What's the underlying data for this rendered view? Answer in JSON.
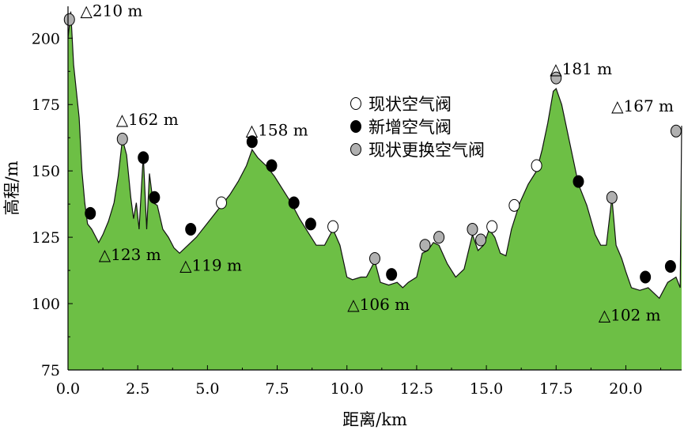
{
  "chart_data": {
    "type": "area",
    "xlabel": "距离/km",
    "ylabel": "高程/m",
    "xlim": [
      0,
      22
    ],
    "ylim": [
      75,
      212
    ],
    "x_ticks": [
      "0.0",
      "2.5",
      "5.0",
      "7.5",
      "10.0",
      "12.5",
      "15.0",
      "17.5",
      "20.0"
    ],
    "y_ticks": [
      "75",
      "100",
      "125",
      "150",
      "175",
      "200"
    ],
    "fill_color": "#6dbf45",
    "profile": [
      [
        0.0,
        200
      ],
      [
        0.1,
        210
      ],
      [
        0.2,
        190
      ],
      [
        0.4,
        170
      ],
      [
        0.5,
        150
      ],
      [
        0.6,
        138
      ],
      [
        0.7,
        130
      ],
      [
        0.85,
        128
      ],
      [
        1.0,
        125
      ],
      [
        1.1,
        123
      ],
      [
        1.25,
        126
      ],
      [
        1.45,
        131
      ],
      [
        1.65,
        138
      ],
      [
        1.8,
        148
      ],
      [
        1.95,
        162
      ],
      [
        2.1,
        156
      ],
      [
        2.25,
        140
      ],
      [
        2.35,
        132
      ],
      [
        2.45,
        138
      ],
      [
        2.55,
        128
      ],
      [
        2.7,
        156
      ],
      [
        2.82,
        128
      ],
      [
        2.92,
        149
      ],
      [
        3.05,
        138
      ],
      [
        3.2,
        137
      ],
      [
        3.4,
        128
      ],
      [
        3.6,
        125
      ],
      [
        3.8,
        121
      ],
      [
        4.0,
        119
      ],
      [
        4.3,
        122
      ],
      [
        4.6,
        125
      ],
      [
        4.9,
        129
      ],
      [
        5.2,
        133
      ],
      [
        5.5,
        137
      ],
      [
        5.8,
        141
      ],
      [
        6.1,
        146
      ],
      [
        6.4,
        152
      ],
      [
        6.6,
        158
      ],
      [
        6.8,
        155
      ],
      [
        7.1,
        152
      ],
      [
        7.4,
        148
      ],
      [
        7.7,
        143
      ],
      [
        8.0,
        138
      ],
      [
        8.3,
        132
      ],
      [
        8.6,
        127
      ],
      [
        8.9,
        122
      ],
      [
        9.2,
        122
      ],
      [
        9.5,
        128
      ],
      [
        9.75,
        122
      ],
      [
        10.0,
        110
      ],
      [
        10.2,
        109
      ],
      [
        10.5,
        110
      ],
      [
        10.7,
        110
      ],
      [
        11.0,
        116
      ],
      [
        11.2,
        108
      ],
      [
        11.5,
        107
      ],
      [
        11.8,
        108
      ],
      [
        12.0,
        106
      ],
      [
        12.2,
        108
      ],
      [
        12.5,
        110
      ],
      [
        12.7,
        119
      ],
      [
        12.9,
        120
      ],
      [
        13.1,
        123
      ],
      [
        13.3,
        122
      ],
      [
        13.6,
        115
      ],
      [
        13.9,
        110
      ],
      [
        14.2,
        113
      ],
      [
        14.5,
        126
      ],
      [
        14.7,
        120
      ],
      [
        14.9,
        122
      ],
      [
        15.1,
        128
      ],
      [
        15.3,
        125
      ],
      [
        15.5,
        119
      ],
      [
        15.7,
        118
      ],
      [
        15.9,
        128
      ],
      [
        16.2,
        138
      ],
      [
        16.5,
        145
      ],
      [
        16.8,
        150
      ],
      [
        17.0,
        158
      ],
      [
        17.2,
        168
      ],
      [
        17.4,
        180
      ],
      [
        17.5,
        181
      ],
      [
        17.7,
        175
      ],
      [
        18.0,
        160
      ],
      [
        18.3,
        145
      ],
      [
        18.6,
        137
      ],
      [
        18.9,
        126
      ],
      [
        19.1,
        122
      ],
      [
        19.3,
        122
      ],
      [
        19.5,
        140
      ],
      [
        19.65,
        122
      ],
      [
        19.85,
        117
      ],
      [
        20.0,
        112
      ],
      [
        20.2,
        106
      ],
      [
        20.5,
        105
      ],
      [
        20.8,
        106
      ],
      [
        21.0,
        104
      ],
      [
        21.2,
        102
      ],
      [
        21.5,
        108
      ],
      [
        21.8,
        110
      ],
      [
        21.95,
        106
      ],
      [
        22.0,
        167
      ]
    ],
    "annotations": [
      {
        "x": 0.1,
        "y": 210,
        "text": "△210 m",
        "pos": "right"
      },
      {
        "x": 1.1,
        "y": 123,
        "text": "△123 m",
        "pos": "right-below"
      },
      {
        "x": 1.95,
        "y": 162,
        "text": "△162 m",
        "pos": "above"
      },
      {
        "x": 4.0,
        "y": 119,
        "text": "△119 m",
        "pos": "right-below"
      },
      {
        "x": 6.6,
        "y": 158,
        "text": "△158 m",
        "pos": "above"
      },
      {
        "x": 12.0,
        "y": 106,
        "text": "△106 m",
        "pos": "below"
      },
      {
        "x": 17.5,
        "y": 181,
        "text": "△181 m",
        "pos": "above"
      },
      {
        "x": 21.0,
        "y": 102,
        "text": "△102 m",
        "pos": "below"
      },
      {
        "x": 22.0,
        "y": 167,
        "text": "△167 m",
        "pos": "left-above"
      }
    ],
    "legend": [
      {
        "label": "现状空气阀",
        "fill": "#ffffff"
      },
      {
        "label": "新增空气阀",
        "fill": "#000000"
      },
      {
        "label": "现状更换空气阀",
        "fill": "#b0b0b0"
      }
    ],
    "valves": [
      {
        "x": 5.5,
        "y": 138,
        "type": 0
      },
      {
        "x": 9.5,
        "y": 129,
        "type": 0
      },
      {
        "x": 15.2,
        "y": 129,
        "type": 0
      },
      {
        "x": 16.0,
        "y": 137,
        "type": 0
      },
      {
        "x": 16.8,
        "y": 152,
        "type": 0
      },
      {
        "x": 0.8,
        "y": 134,
        "type": 1
      },
      {
        "x": 2.7,
        "y": 155,
        "type": 1
      },
      {
        "x": 3.1,
        "y": 140,
        "type": 1
      },
      {
        "x": 4.4,
        "y": 128,
        "type": 1
      },
      {
        "x": 6.6,
        "y": 161,
        "type": 1
      },
      {
        "x": 7.3,
        "y": 152,
        "type": 1
      },
      {
        "x": 8.1,
        "y": 138,
        "type": 1
      },
      {
        "x": 8.7,
        "y": 130,
        "type": 1
      },
      {
        "x": 11.6,
        "y": 111,
        "type": 1
      },
      {
        "x": 18.3,
        "y": 146,
        "type": 1
      },
      {
        "x": 20.7,
        "y": 110,
        "type": 1
      },
      {
        "x": 21.6,
        "y": 114,
        "type": 1
      },
      {
        "x": 0.05,
        "y": 207,
        "type": 2
      },
      {
        "x": 1.95,
        "y": 162,
        "type": 2
      },
      {
        "x": 11.0,
        "y": 117,
        "type": 2
      },
      {
        "x": 12.8,
        "y": 122,
        "type": 2
      },
      {
        "x": 13.3,
        "y": 125,
        "type": 2
      },
      {
        "x": 14.5,
        "y": 128,
        "type": 2
      },
      {
        "x": 14.8,
        "y": 124,
        "type": 2
      },
      {
        "x": 17.5,
        "y": 185,
        "type": 2
      },
      {
        "x": 19.5,
        "y": 140,
        "type": 2
      },
      {
        "x": 21.8,
        "y": 165,
        "type": 2
      }
    ]
  }
}
